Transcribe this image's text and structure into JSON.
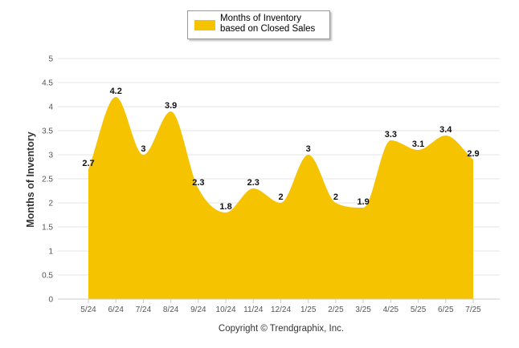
{
  "chart_data": {
    "type": "area",
    "title": "",
    "categories": [
      "5/24",
      "6/24",
      "7/24",
      "8/24",
      "9/24",
      "10/24",
      "11/24",
      "12/24",
      "1/25",
      "2/25",
      "3/25",
      "4/25",
      "5/25",
      "6/25",
      "7/25"
    ],
    "series": [
      {
        "name": "Months of Inventory based on Closed Sales",
        "values": [
          2.7,
          4.2,
          3,
          3.9,
          2.3,
          1.8,
          2.3,
          2,
          3,
          2,
          1.9,
          3.3,
          3.1,
          3.4,
          2.9
        ],
        "labels": [
          "2.7",
          "4.2",
          "3",
          "3.9",
          "2.3",
          "1.8",
          "2.3",
          "2",
          "3",
          "2",
          "1.9",
          "3.3",
          "3.1",
          "3.4",
          "2.9"
        ],
        "color": "#F5C300"
      }
    ],
    "ylabel": "Months of Inventory",
    "xlabel": "",
    "ylim": [
      0,
      5
    ],
    "yticks": [
      "0",
      "0.5",
      "1",
      "1.5",
      "2",
      "2.5",
      "3",
      "3.5",
      "4",
      "4.5",
      "5"
    ],
    "grid": true,
    "legend_position": "top-center"
  },
  "legend": {
    "label": "Months of Inventory based on Closed Sales"
  },
  "footer": {
    "copyright": "Copyright © Trendgraphix, Inc."
  },
  "colors": {
    "series": "#F5C300",
    "grid": "#e6e6e6",
    "axis": "#cccccc"
  }
}
